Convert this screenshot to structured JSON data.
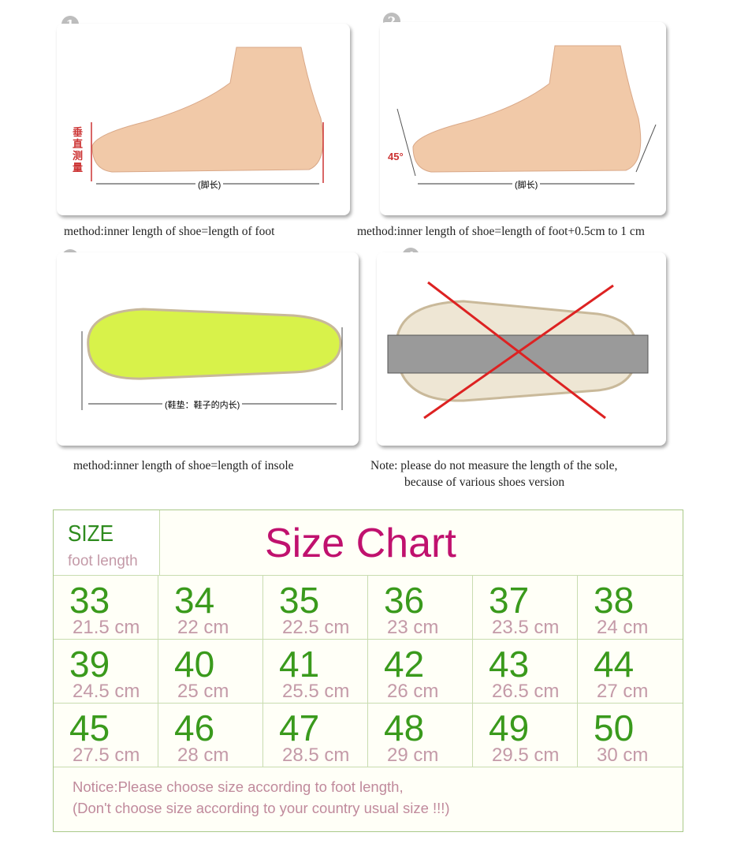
{
  "steps": [
    {
      "number": "1",
      "caption": "method:inner length of shoe=length of foot",
      "label_vertical": "垂直测量",
      "label_length": "(脚长)"
    },
    {
      "number": "2",
      "caption": "method:inner length of shoe=length of foot+0.5cm to 1 cm",
      "angle": "45°",
      "label_length": "(脚长)"
    },
    {
      "number": "3",
      "caption": "method:inner length of shoe=length of insole",
      "label_length": "(鞋垫：鞋子的内长)"
    },
    {
      "number": "4",
      "caption_lines": [
        "Note: please do not measure the length of the sole,",
        "because of various shoes version"
      ]
    }
  ],
  "size_chart": {
    "title": "Size Chart",
    "size_label": "SIZE",
    "length_label": "foot length",
    "rows": [
      [
        {
          "size": "33",
          "length": "21.5 cm"
        },
        {
          "size": "34",
          "length": "22 cm"
        },
        {
          "size": "35",
          "length": "22.5 cm"
        },
        {
          "size": "36",
          "length": "23 cm"
        },
        {
          "size": "37",
          "length": "23.5 cm"
        },
        {
          "size": "38",
          "length": "24 cm"
        }
      ],
      [
        {
          "size": "39",
          "length": "24.5 cm"
        },
        {
          "size": "40",
          "length": "25 cm"
        },
        {
          "size": "41",
          "length": "25.5 cm"
        },
        {
          "size": "42",
          "length": "26 cm"
        },
        {
          "size": "43",
          "length": "26.5 cm"
        },
        {
          "size": "44",
          "length": "27 cm"
        }
      ],
      [
        {
          "size": "45",
          "length": "27.5 cm"
        },
        {
          "size": "46",
          "length": "28 cm"
        },
        {
          "size": "47",
          "length": "28.5 cm"
        },
        {
          "size": "48",
          "length": "29 cm"
        },
        {
          "size": "49",
          "length": "29.5 cm"
        },
        {
          "size": "50",
          "length": "30 cm"
        }
      ]
    ],
    "notice": [
      "Notice:Please choose size according to foot length,",
      "(Don't choose size according to your country usual size !!!)"
    ]
  },
  "colors": {
    "size_green": "#3a9a1c",
    "title_magenta": "#c0116e",
    "length_pink": "#c49aa8",
    "border": "#a9c98a"
  }
}
